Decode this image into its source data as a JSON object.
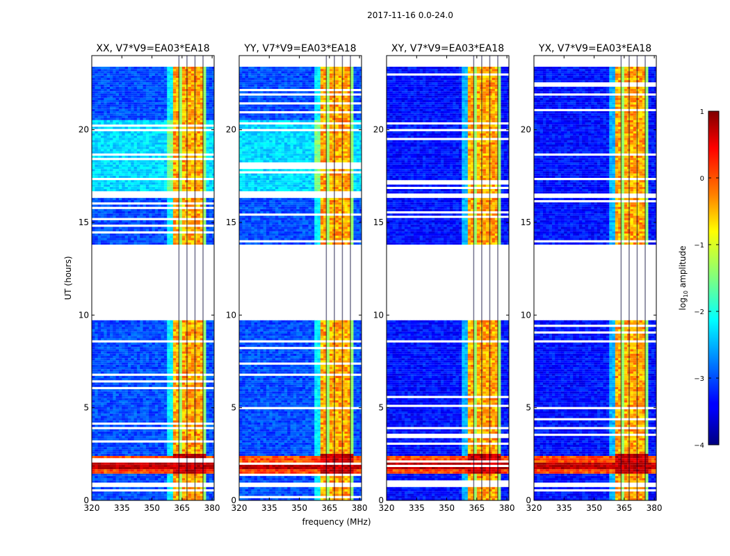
{
  "chart_data": {
    "type": "heatmap",
    "title": "2017-11-16 0.0-24.0",
    "xlabel": "frequency (MHz)",
    "ylabel": "UT (hours)",
    "xlim": [
      320,
      381
    ],
    "ylim": [
      0,
      24
    ],
    "x_ticks": [
      320,
      335,
      350,
      365,
      380
    ],
    "y_ticks": [
      0,
      5,
      10,
      15,
      20
    ],
    "panels": [
      {
        "title": "XX, V7*V9=EA03*EA18",
        "id": "xx"
      },
      {
        "title": "YY, V7*V9=EA03*EA18",
        "id": "yy"
      },
      {
        "title": "XY, V7*V9=EA03*EA18",
        "id": "xy"
      },
      {
        "title": "YX, V7*V9=EA03*EA18",
        "id": "yx"
      }
    ],
    "colorbar": {
      "label": "log10 amplitude",
      "label_main": "log",
      "label_sub": "10",
      "label_rest": " amplitude",
      "min": -4,
      "max": 1,
      "ticks": [
        1,
        0,
        -1,
        -2,
        -3,
        -4
      ],
      "tick_labels": [
        "1",
        "0",
        "−1",
        "−2",
        "−3",
        "−4"
      ],
      "colormap": "jet"
    },
    "data_gaps_ut": [
      [
        0.65,
        0.95
      ],
      [
        8.5,
        8.55
      ],
      [
        9.6,
        13.7
      ],
      [
        16.3,
        16.5
      ],
      [
        23.3,
        24.0
      ]
    ],
    "band_ut": [
      [
        0.0,
        0.6
      ],
      [
        1.0,
        2.3
      ],
      [
        2.5,
        4.4
      ],
      [
        8.6,
        9.6
      ],
      [
        13.7,
        16.3
      ],
      [
        16.5,
        23.3
      ]
    ],
    "bright_channel_range_mhz": [
      360,
      376
    ]
  }
}
